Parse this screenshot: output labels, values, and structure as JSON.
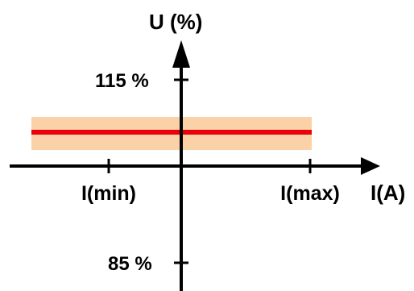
{
  "axes": {
    "y_label": "U (%)",
    "x_label": "I(A)",
    "y_ticks": [
      "115 %",
      "85 %"
    ],
    "x_ticks": [
      "I(min)",
      "I(max)"
    ]
  },
  "colors": {
    "axis": "#000000",
    "line": "#e8000b",
    "band": "#fbd2a7",
    "text": "#000000"
  }
}
